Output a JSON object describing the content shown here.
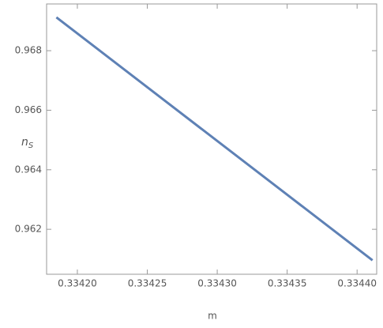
{
  "chart_data": {
    "type": "line",
    "x_label": "m",
    "y_label": {
      "base": "n",
      "sub": "S"
    },
    "x": [
      0.334185,
      0.334411
    ],
    "series": [
      {
        "color": "#5e81b5",
        "values": [
          0.96912,
          0.96096
        ]
      }
    ],
    "xlim": [
      0.334178,
      0.334414
    ],
    "ylim": [
      0.96049,
      0.96957
    ],
    "xticks": [
      {
        "value": 0.3342,
        "label": "0.33420"
      },
      {
        "value": 0.33425,
        "label": "0.33425"
      },
      {
        "value": 0.3343,
        "label": "0.33430"
      },
      {
        "value": 0.33435,
        "label": "0.33435"
      },
      {
        "value": 0.3344,
        "label": "0.33440"
      }
    ],
    "yticks": [
      0.962,
      0.964,
      0.966,
      0.968
    ]
  }
}
